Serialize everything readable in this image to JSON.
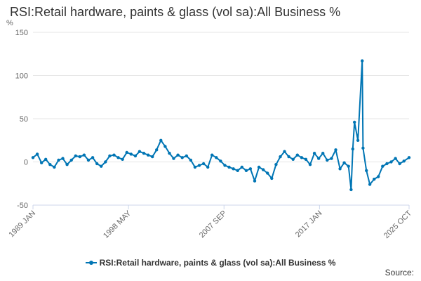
{
  "title": "RSI:Retail hardware, paints & glass (vol sa):All Business %",
  "source_label": "Source:",
  "colors": {
    "series": "#0075b4",
    "grid": "#e6e6e6",
    "axis_text": "#666666",
    "title_text": "#333333"
  },
  "chart_data": {
    "type": "line",
    "title": "RSI:Retail hardware, paints & glass (vol sa):All Business %",
    "ylabel": "%",
    "xlabel": "",
    "ylim": [
      -50,
      150
    ],
    "yticks": [
      -50,
      0,
      50,
      100,
      150
    ],
    "xlim": [
      "1989 JAN",
      "2025 OCT"
    ],
    "xticks": [
      "1989 JAN",
      "1998 MAY",
      "2007 SEP",
      "2017 JAN",
      "2025 OCT"
    ],
    "grid": "horizontal",
    "legend": "bottom",
    "series": [
      {
        "name": "RSI:Retail hardware, paints & glass (vol sa):All Business %",
        "points": [
          [
            "1989 JAN",
            5
          ],
          [
            "1989 JUN",
            9
          ],
          [
            "1989 NOV",
            -1
          ],
          [
            "1990 APR",
            3
          ],
          [
            "1990 SEP",
            -3
          ],
          [
            "1991 FEB",
            -6
          ],
          [
            "1991 JUL",
            2
          ],
          [
            "1991 DEC",
            4
          ],
          [
            "1992 MAY",
            -3
          ],
          [
            "1992 OCT",
            2
          ],
          [
            "1993 MAR",
            7
          ],
          [
            "1993 AUG",
            6
          ],
          [
            "1994 JAN",
            8
          ],
          [
            "1994 JUN",
            2
          ],
          [
            "1994 NOV",
            5
          ],
          [
            "1995 APR",
            -2
          ],
          [
            "1995 SEP",
            -5
          ],
          [
            "1996 FEB",
            0
          ],
          [
            "1996 JUL",
            7
          ],
          [
            "1996 DEC",
            8
          ],
          [
            "1997 MAY",
            5
          ],
          [
            "1997 OCT",
            3
          ],
          [
            "1998 MAR",
            11
          ],
          [
            "1998 AUG",
            9
          ],
          [
            "1999 JAN",
            7
          ],
          [
            "1999 JUN",
            12
          ],
          [
            "1999 NOV",
            10
          ],
          [
            "2000 APR",
            8
          ],
          [
            "2000 SEP",
            6
          ],
          [
            "2001 FEB",
            14
          ],
          [
            "2001 JUL",
            25
          ],
          [
            "2001 DEC",
            18
          ],
          [
            "2002 MAY",
            10
          ],
          [
            "2002 OCT",
            4
          ],
          [
            "2003 MAR",
            8
          ],
          [
            "2003 AUG",
            5
          ],
          [
            "2004 JAN",
            7
          ],
          [
            "2004 JUN",
            2
          ],
          [
            "2004 NOV",
            -6
          ],
          [
            "2005 APR",
            -4
          ],
          [
            "2005 SEP",
            -2
          ],
          [
            "2006 FEB",
            -6
          ],
          [
            "2006 JUL",
            8
          ],
          [
            "2006 DEC",
            5
          ],
          [
            "2007 MAY",
            1
          ],
          [
            "2007 OCT",
            -4
          ],
          [
            "2008 MAR",
            -6
          ],
          [
            "2008 AUG",
            -8
          ],
          [
            "2009 JAN",
            -10
          ],
          [
            "2009 JUN",
            -6
          ],
          [
            "2009 NOV",
            -10
          ],
          [
            "2010 APR",
            -8
          ],
          [
            "2010 SEP",
            -22
          ],
          [
            "2011 FEB",
            -6
          ],
          [
            "2011 JUL",
            -9
          ],
          [
            "2011 DEC",
            -13
          ],
          [
            "2012 MAY",
            -19
          ],
          [
            "2012 OCT",
            -3
          ],
          [
            "2013 MAR",
            6
          ],
          [
            "2013 AUG",
            12
          ],
          [
            "2014 JAN",
            6
          ],
          [
            "2014 JUN",
            3
          ],
          [
            "2014 NOV",
            8
          ],
          [
            "2015 APR",
            5
          ],
          [
            "2015 SEP",
            3
          ],
          [
            "2016 FEB",
            -3
          ],
          [
            "2016 JUL",
            10
          ],
          [
            "2016 DEC",
            4
          ],
          [
            "2017 MAY",
            10
          ],
          [
            "2017 OCT",
            2
          ],
          [
            "2018 MAR",
            4
          ],
          [
            "2018 AUG",
            14
          ],
          [
            "2019 JAN",
            -8
          ],
          [
            "2019 JUN",
            -1
          ],
          [
            "2019 NOV",
            -5
          ],
          [
            "2020 FEB",
            -32
          ],
          [
            "2020 APR",
            15
          ],
          [
            "2020 JUN",
            46
          ],
          [
            "2020 OCT",
            25
          ],
          [
            "2021 MAR",
            117
          ],
          [
            "2021 APR",
            16
          ],
          [
            "2021 AUG",
            -10
          ],
          [
            "2021 DEC",
            -26
          ],
          [
            "2022 MAY",
            -20
          ],
          [
            "2022 OCT",
            -17
          ],
          [
            "2023 MAR",
            -5
          ],
          [
            "2023 AUG",
            -2
          ],
          [
            "2024 JAN",
            0
          ],
          [
            "2024 JUN",
            4
          ],
          [
            "2024 NOV",
            -2
          ],
          [
            "2025 APR",
            1
          ],
          [
            "2025 OCT",
            5
          ]
        ]
      }
    ]
  }
}
